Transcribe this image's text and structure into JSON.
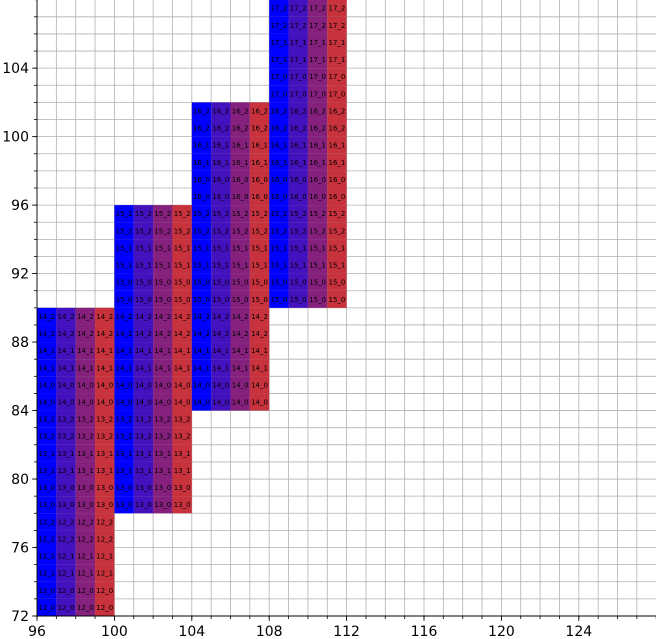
{
  "chart_data": {
    "type": "heatmap",
    "title": "",
    "xlabel": "",
    "ylabel": "",
    "xlim": [
      96,
      128.3
    ],
    "ylim": [
      72,
      108.1
    ],
    "grid": true,
    "xticks": [
      96,
      100,
      104,
      108,
      112,
      116,
      120,
      124
    ],
    "yticks": [
      72,
      76,
      80,
      84,
      88,
      92,
      96,
      100,
      104
    ],
    "cell_width": 1,
    "cell_height": 1,
    "color_scale": [
      "#0000ff",
      "#c8323c"
    ],
    "blocks": [
      {
        "x": 96,
        "y_start": 72,
        "y_end": 90,
        "columns": 4,
        "row_labels": [
          "12_0",
          "12_0",
          "12_1",
          "12_1",
          "12_2",
          "12_2",
          "13_0",
          "13_0",
          "13_1",
          "13_1",
          "13_2",
          "13_2",
          "14_0",
          "14_0",
          "14_1",
          "14_1",
          "14_2",
          "14_2"
        ]
      },
      {
        "x": 100,
        "y_start": 78,
        "y_end": 96,
        "columns": 4,
        "row_labels": [
          "13_0",
          "13_0",
          "13_1",
          "13_1",
          "13_2",
          "13_2",
          "14_0",
          "14_0",
          "14_1",
          "14_1",
          "14_2",
          "14_2",
          "15_0",
          "15_0",
          "15_1",
          "15_1",
          "15_2",
          "15_2"
        ]
      },
      {
        "x": 104,
        "y_start": 84,
        "y_end": 102,
        "columns": 4,
        "row_labels": [
          "14_0",
          "14_0",
          "14_1",
          "14_1",
          "14_2",
          "14_2",
          "15_0",
          "15_0",
          "15_1",
          "15_1",
          "15_2",
          "15_2",
          "16_0",
          "16_0",
          "16_1",
          "16_1",
          "16_2",
          "16_2"
        ]
      },
      {
        "x": 108,
        "y_start": 90,
        "y_end": 108,
        "columns": 4,
        "row_labels": [
          "15_0",
          "15_0",
          "15_1",
          "15_1",
          "15_2",
          "15_2",
          "16_0",
          "16_0",
          "16_1",
          "16_1",
          "16_2",
          "16_2",
          "17_0",
          "17_0",
          "17_1",
          "17_1",
          "17_2",
          "17_2"
        ]
      }
    ]
  }
}
